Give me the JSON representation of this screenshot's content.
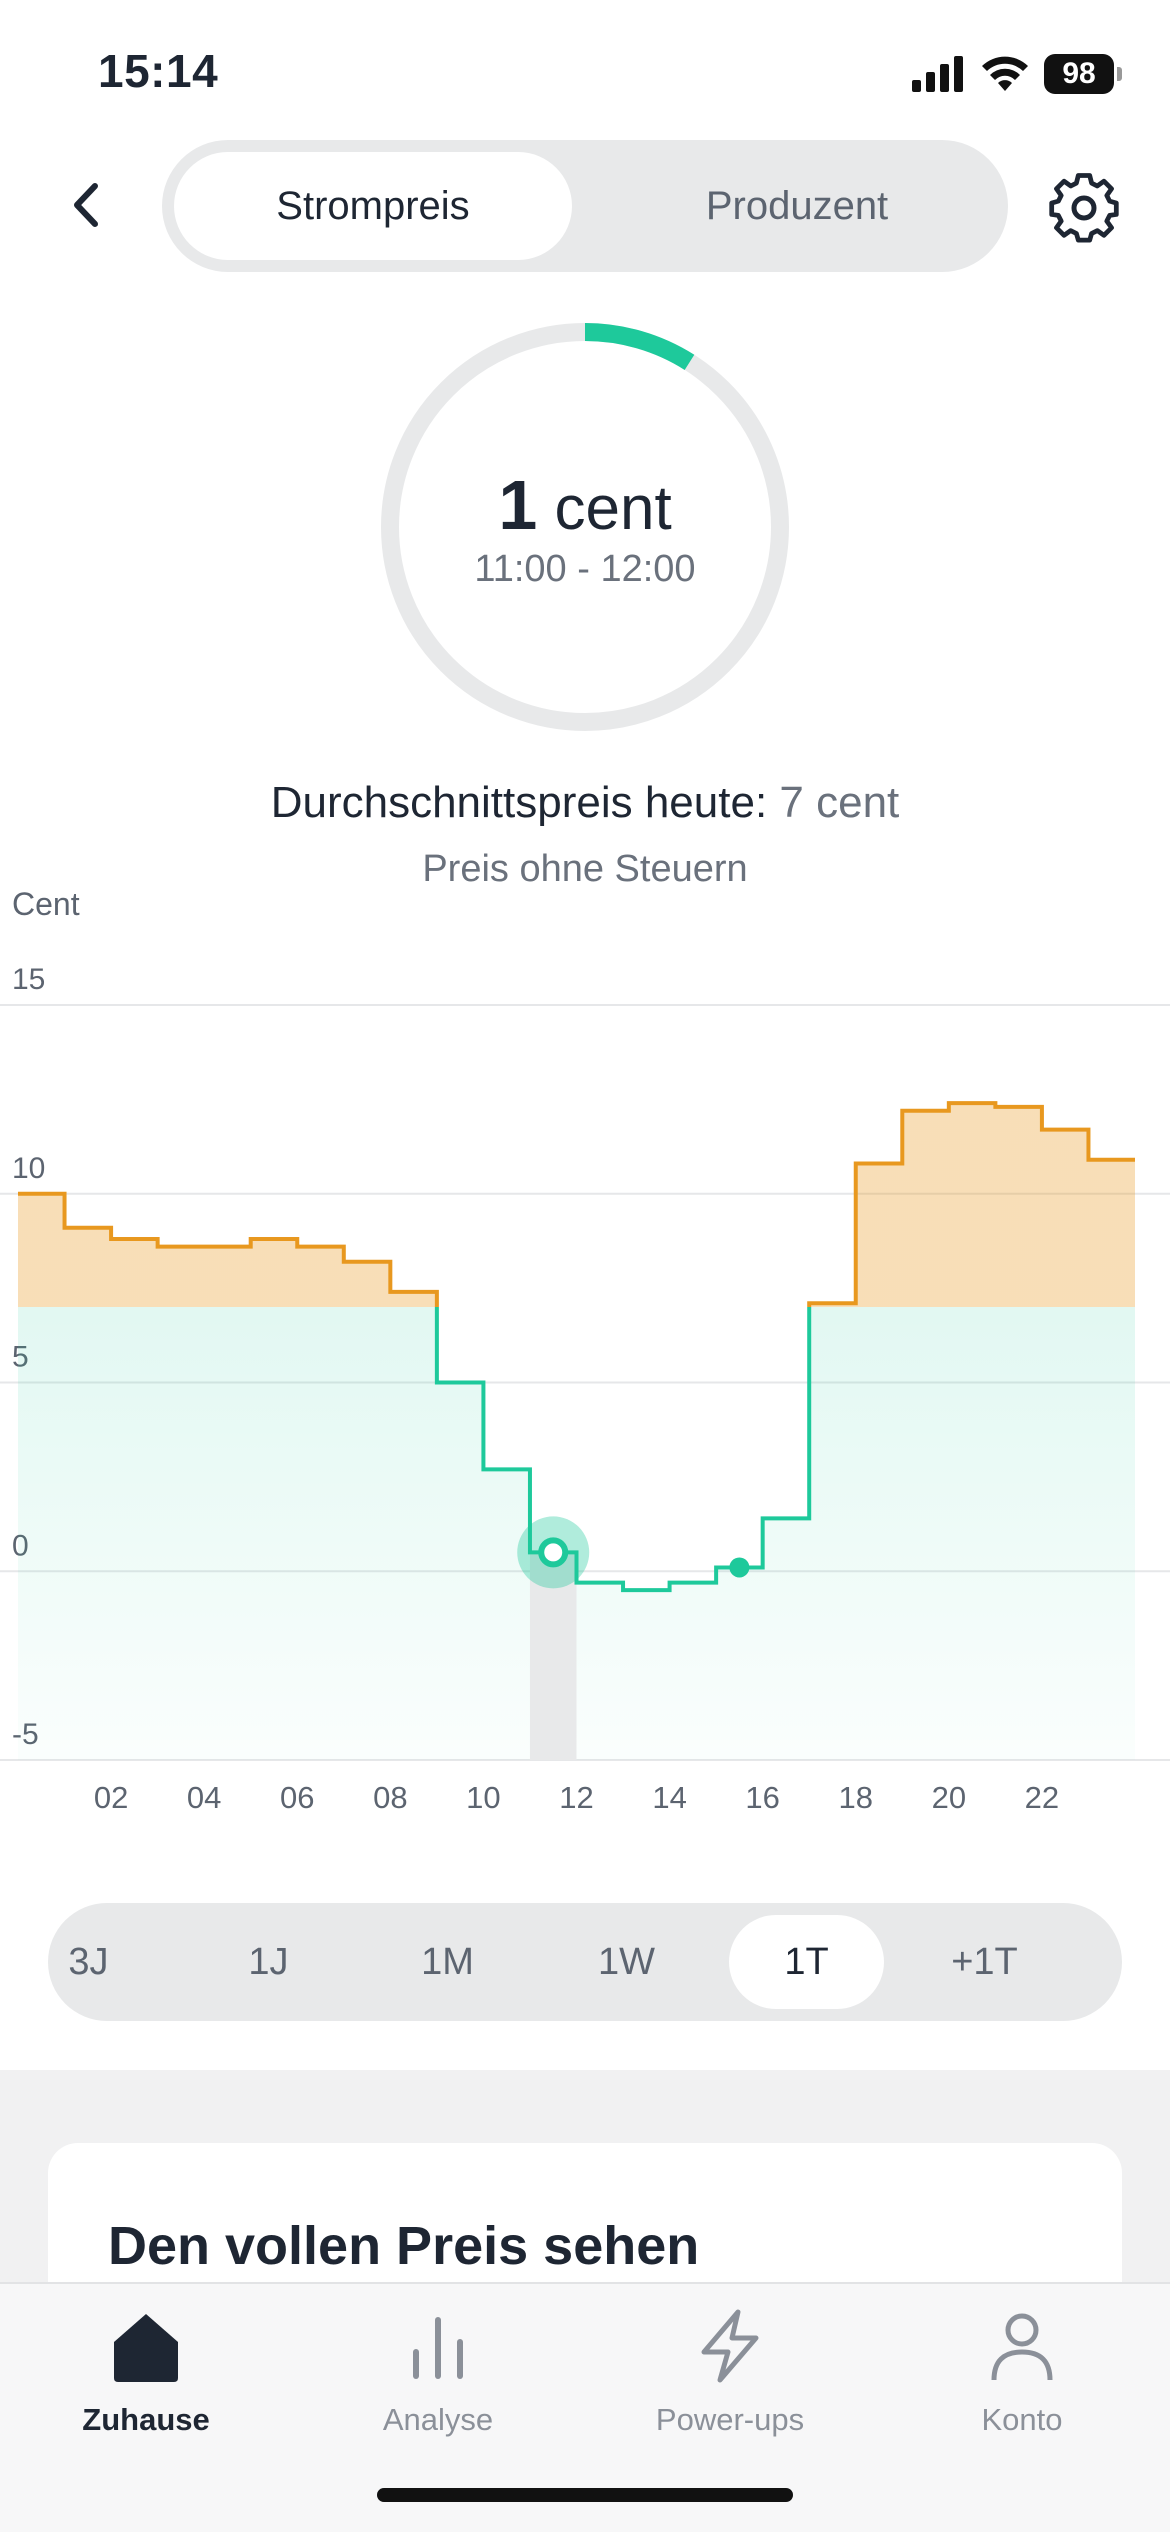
{
  "status_bar": {
    "time": "15:14",
    "battery": "98"
  },
  "header": {
    "tabs": [
      {
        "label": "Strompreis",
        "active": true
      },
      {
        "label": "Produzent",
        "active": false
      }
    ],
    "icons": {
      "back": "chevron-left-icon",
      "settings": "gear-icon"
    }
  },
  "gauge": {
    "value": "1",
    "unit": "cent",
    "time_range": "11:00 - 12:00",
    "fill_fraction": 0.09,
    "track_color": "#e8e9ea",
    "fill_color": "#1ec99b"
  },
  "average": {
    "label": "Durchschnittspreis heute:",
    "value": "7 cent"
  },
  "tax_note": "Preis ohne Steuern",
  "chart_data": {
    "type": "line",
    "step": true,
    "ylabel": "Cent",
    "ylim": [
      -5,
      15
    ],
    "yticks": [
      "15",
      "10",
      "5",
      "0",
      "-5"
    ],
    "xticks": [
      "02",
      "04",
      "06",
      "08",
      "10",
      "12",
      "14",
      "16",
      "18",
      "20",
      "22"
    ],
    "x_hours": [
      0,
      1,
      2,
      3,
      4,
      5,
      6,
      7,
      8,
      9,
      10,
      11,
      12,
      13,
      14,
      15,
      16,
      17,
      18,
      19,
      20,
      21,
      22,
      23
    ],
    "values": [
      10.0,
      9.1,
      8.8,
      8.6,
      8.6,
      8.8,
      8.6,
      8.2,
      7.4,
      5.0,
      2.7,
      0.5,
      -0.3,
      -0.5,
      -0.3,
      0.1,
      1.4,
      7.1,
      10.8,
      12.2,
      12.4,
      12.3,
      11.7,
      10.9
    ],
    "threshold": 7,
    "above_color": "#e8981f",
    "below_color": "#1ec99b",
    "selected_hour": 11,
    "current_marker_hour": 15,
    "grid": true
  },
  "range_selector": {
    "options": [
      "3J",
      "1J",
      "1M",
      "1W",
      "1T",
      "+1T"
    ],
    "active": "1T"
  },
  "card": {
    "title": "Den vollen Preis sehen"
  },
  "tabbar": {
    "items": [
      {
        "label": "Zuhause",
        "icon": "home-icon",
        "active": true
      },
      {
        "label": "Analyse",
        "icon": "bar-chart-icon",
        "active": false
      },
      {
        "label": "Power-ups",
        "icon": "lightning-icon",
        "active": false
      },
      {
        "label": "Konto",
        "icon": "user-icon",
        "active": false
      }
    ]
  }
}
